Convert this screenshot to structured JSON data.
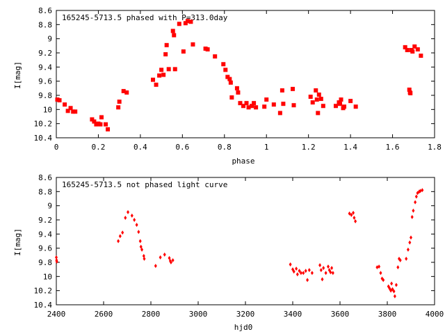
{
  "chart_data": [
    {
      "type": "scatter",
      "title": "165245-5713.5 phased with P=313.0day",
      "xlabel": "phase",
      "ylabel": "I[mag]",
      "xlim": [
        0,
        1.8
      ],
      "ylim": [
        10.4,
        8.6
      ],
      "y_inverted": true,
      "marker": "filled square",
      "point_color": "#ff0000",
      "xticks": [
        0,
        0.2,
        0.4,
        0.6,
        0.8,
        1,
        1.2,
        1.4,
        1.6,
        1.8
      ],
      "xtick_labels": [
        "0",
        "0.2",
        "0.4",
        "0.6",
        "0.8",
        "1",
        "1.2",
        "1.4",
        "1.6",
        "1.8"
      ],
      "yticks": [
        8.6,
        8.8,
        9,
        9.2,
        9.4,
        9.6,
        9.8,
        10,
        10.2,
        10.4
      ],
      "ytick_labels": [
        "8.6",
        "8.8",
        "9",
        "9.2",
        "9.4",
        "9.6",
        "9.8",
        "10",
        "10.2",
        "10.4"
      ],
      "points": [
        [
          0.005,
          9.86
        ],
        [
          0.015,
          9.87
        ],
        [
          0.04,
          9.93
        ],
        [
          0.055,
          10.02
        ],
        [
          0.068,
          9.98
        ],
        [
          0.08,
          10.03
        ],
        [
          0.09,
          10.03
        ],
        [
          0.17,
          10.14
        ],
        [
          0.18,
          10.17
        ],
        [
          0.19,
          10.21
        ],
        [
          0.2,
          10.2
        ],
        [
          0.21,
          10.21
        ],
        [
          0.215,
          10.11
        ],
        [
          0.235,
          10.21
        ],
        [
          0.245,
          10.28
        ],
        [
          0.295,
          9.97
        ],
        [
          0.3,
          9.89
        ],
        [
          0.32,
          9.74
        ],
        [
          0.335,
          9.76
        ],
        [
          0.46,
          9.58
        ],
        [
          0.475,
          9.65
        ],
        [
          0.49,
          9.52
        ],
        [
          0.5,
          9.44
        ],
        [
          0.51,
          9.51
        ],
        [
          0.52,
          9.22
        ],
        [
          0.525,
          9.09
        ],
        [
          0.535,
          9.43
        ],
        [
          0.555,
          8.89
        ],
        [
          0.56,
          8.95
        ],
        [
          0.565,
          9.43
        ],
        [
          0.585,
          8.79
        ],
        [
          0.605,
          9.18
        ],
        [
          0.615,
          8.78
        ],
        [
          0.625,
          8.75
        ],
        [
          0.64,
          8.76
        ],
        [
          0.65,
          9.08
        ],
        [
          0.71,
          9.14
        ],
        [
          0.72,
          9.15
        ],
        [
          0.755,
          9.25
        ],
        [
          0.795,
          9.36
        ],
        [
          0.805,
          9.44
        ],
        [
          0.815,
          9.54
        ],
        [
          0.825,
          9.57
        ],
        [
          0.83,
          9.62
        ],
        [
          0.835,
          9.83
        ],
        [
          0.86,
          9.7
        ],
        [
          0.865,
          9.76
        ],
        [
          0.875,
          9.91
        ],
        [
          0.89,
          9.95
        ],
        [
          0.905,
          9.91
        ],
        [
          0.915,
          9.97
        ],
        [
          0.93,
          9.95
        ],
        [
          0.94,
          9.91
        ],
        [
          0.95,
          9.97
        ],
        [
          0.99,
          9.96
        ],
        [
          1.0,
          9.86
        ],
        [
          1.035,
          9.93
        ],
        [
          1.065,
          10.05
        ],
        [
          1.075,
          9.73
        ],
        [
          1.08,
          9.92
        ],
        [
          1.125,
          9.71
        ],
        [
          1.13,
          9.94
        ],
        [
          1.21,
          9.82
        ],
        [
          1.22,
          9.9
        ],
        [
          1.235,
          9.73
        ],
        [
          1.24,
          9.86
        ],
        [
          1.245,
          10.05
        ],
        [
          1.25,
          9.79
        ],
        [
          1.26,
          9.85
        ],
        [
          1.27,
          9.95
        ],
        [
          1.33,
          9.95
        ],
        [
          1.345,
          9.9
        ],
        [
          1.35,
          9.92
        ],
        [
          1.355,
          9.86
        ],
        [
          1.365,
          9.98
        ],
        [
          1.37,
          9.96
        ],
        [
          1.4,
          9.88
        ],
        [
          1.425,
          9.96
        ],
        [
          1.66,
          9.12
        ],
        [
          1.67,
          9.16
        ],
        [
          1.68,
          9.72
        ],
        [
          1.683,
          9.76
        ],
        [
          1.685,
          9.77
        ],
        [
          1.69,
          9.16
        ],
        [
          1.695,
          9.18
        ],
        [
          1.705,
          9.11
        ],
        [
          1.72,
          9.15
        ],
        [
          1.735,
          9.24
        ]
      ]
    },
    {
      "type": "scatter",
      "title": "165245-5713.5 not phased light curve",
      "xlabel": "hjd0",
      "ylabel": "I[mag]",
      "xlim": [
        2400,
        4000
      ],
      "ylim": [
        10.4,
        8.6
      ],
      "y_inverted": true,
      "marker": "filled diamond",
      "point_color": "#ff0000",
      "xticks": [
        2400,
        2600,
        2800,
        3000,
        3200,
        3400,
        3600,
        3800,
        4000
      ],
      "xtick_labels": [
        "2400",
        "2600",
        "2800",
        "3000",
        "3200",
        "3400",
        "3600",
        "3800",
        "4000"
      ],
      "yticks": [
        8.6,
        8.8,
        9,
        9.2,
        9.4,
        9.6,
        9.8,
        10,
        10.2,
        10.4
      ],
      "ytick_labels": [
        "8.6",
        "8.8",
        "9",
        "9.2",
        "9.4",
        "9.6",
        "9.8",
        "10",
        "10.2",
        "10.4"
      ],
      "points": [
        [
          2400,
          9.73
        ],
        [
          2401,
          9.77
        ],
        [
          2402,
          9.79
        ],
        [
          2662,
          9.5
        ],
        [
          2670,
          9.43
        ],
        [
          2680,
          9.38
        ],
        [
          2692,
          9.17
        ],
        [
          2703,
          9.09
        ],
        [
          2720,
          9.14
        ],
        [
          2730,
          9.2
        ],
        [
          2740,
          9.27
        ],
        [
          2748,
          9.37
        ],
        [
          2755,
          9.5
        ],
        [
          2758,
          9.58
        ],
        [
          2762,
          9.62
        ],
        [
          2770,
          9.71
        ],
        [
          2772,
          9.75
        ],
        [
          2820,
          9.85
        ],
        [
          2840,
          9.73
        ],
        [
          2858,
          9.69
        ],
        [
          2878,
          9.74
        ],
        [
          2882,
          9.78
        ],
        [
          2885,
          9.8
        ],
        [
          2893,
          9.77
        ],
        [
          3390,
          9.83
        ],
        [
          3400,
          9.9
        ],
        [
          3405,
          9.93
        ],
        [
          3415,
          9.89
        ],
        [
          3420,
          9.97
        ],
        [
          3428,
          9.92
        ],
        [
          3435,
          9.95
        ],
        [
          3445,
          9.95
        ],
        [
          3455,
          9.92
        ],
        [
          3462,
          10.05
        ],
        [
          3470,
          9.91
        ],
        [
          3482,
          9.95
        ],
        [
          3515,
          9.84
        ],
        [
          3520,
          9.91
        ],
        [
          3525,
          10.04
        ],
        [
          3530,
          9.88
        ],
        [
          3540,
          9.95
        ],
        [
          3550,
          9.86
        ],
        [
          3555,
          9.91
        ],
        [
          3560,
          9.94
        ],
        [
          3565,
          9.88
        ],
        [
          3570,
          9.95
        ],
        [
          3640,
          9.11
        ],
        [
          3648,
          9.13
        ],
        [
          3656,
          9.1
        ],
        [
          3660,
          9.17
        ],
        [
          3665,
          9.22
        ],
        [
          3757,
          9.87
        ],
        [
          3765,
          9.86
        ],
        [
          3772,
          9.95
        ],
        [
          3778,
          10.03
        ],
        [
          3783,
          10.05
        ],
        [
          3805,
          10.14
        ],
        [
          3810,
          10.17
        ],
        [
          3815,
          10.2
        ],
        [
          3818,
          10.1
        ],
        [
          3822,
          10.18
        ],
        [
          3828,
          10.21
        ],
        [
          3832,
          10.28
        ],
        [
          3838,
          10.12
        ],
        [
          3845,
          9.87
        ],
        [
          3850,
          9.75
        ],
        [
          3855,
          9.77
        ],
        [
          3880,
          9.75
        ],
        [
          3888,
          9.62
        ],
        [
          3895,
          9.52
        ],
        [
          3900,
          9.45
        ],
        [
          3905,
          9.16
        ],
        [
          3910,
          9.07
        ],
        [
          3918,
          8.95
        ],
        [
          3923,
          8.87
        ],
        [
          3928,
          8.82
        ],
        [
          3935,
          8.8
        ],
        [
          3940,
          8.79
        ],
        [
          3948,
          8.78
        ]
      ]
    }
  ]
}
